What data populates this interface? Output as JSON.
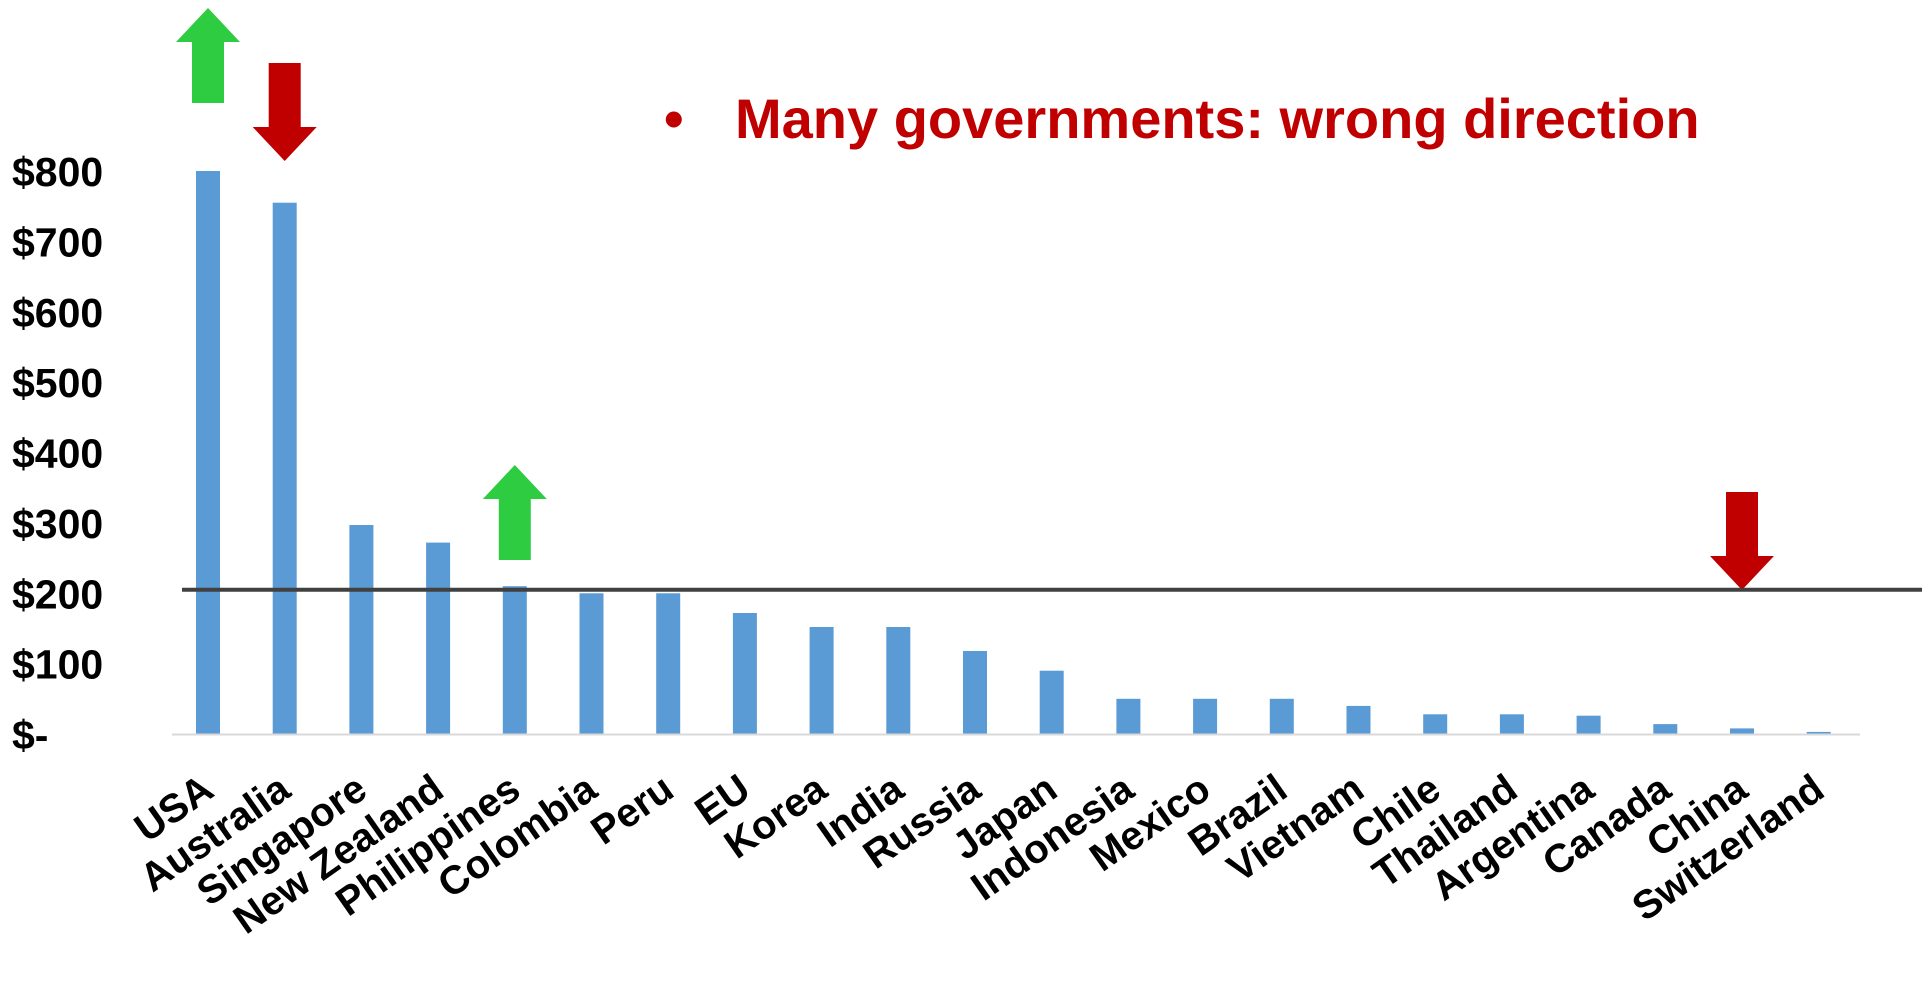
{
  "chart_data": {
    "type": "bar",
    "categories": [
      "USA",
      "Australia",
      "Singapore",
      "New Zealand",
      "Philippines",
      "Colombia",
      "Peru",
      "EU",
      "Korea",
      "India",
      "Russia",
      "Japan",
      "Indonesia",
      "Mexico",
      "Brazil",
      "Vietnam",
      "Chile",
      "Thailand",
      "Argentina",
      "Canada",
      "China",
      "Switzerland"
    ],
    "values": [
      800,
      755,
      297,
      272,
      210,
      200,
      200,
      172,
      152,
      152,
      118,
      90,
      50,
      50,
      50,
      40,
      28,
      28,
      26,
      14,
      8,
      3
    ],
    "y_ticks": [
      "$-",
      "$100",
      "$200",
      "$300",
      "$400",
      "$500",
      "$600",
      "$700",
      "$800"
    ],
    "y_tick_values": [
      0,
      100,
      200,
      300,
      400,
      500,
      600,
      700,
      800
    ],
    "ylim": [
      0,
      800
    ],
    "reference_line": 205,
    "bar_color": "#5b9bd5",
    "reference_line_color": "#404040",
    "arrows": [
      {
        "category": "USA",
        "direction": "up",
        "color": "#2ecc40"
      },
      {
        "category": "Australia",
        "direction": "down",
        "color": "#c00000"
      },
      {
        "category": "Philippines",
        "direction": "up",
        "color": "#2ecc40"
      },
      {
        "category": "China",
        "direction": "down",
        "color": "#c00000"
      }
    ],
    "annotation": {
      "bullet": "•",
      "text": "Many governments: wrong direction",
      "color": "#c00000"
    }
  }
}
